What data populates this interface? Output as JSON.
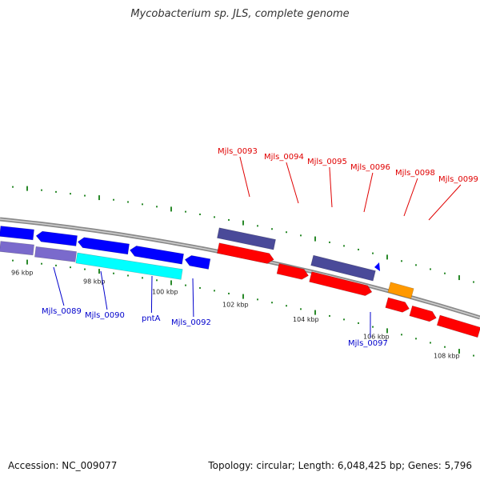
{
  "title": "Mycobacterium sp. JLS, complete genome",
  "footer": {
    "accession": "Accession: NC_009077",
    "topology": "Topology: circular; Length: 6,048,425 bp; Genes: 5,796"
  },
  "colors": {
    "backbone": "#8a8a8a",
    "tick": "#2a8a2a",
    "forward_gene": "#ff0000",
    "reverse_gene": "#0000ff",
    "purple": "#4a4a99",
    "cyan": "#00ffff",
    "orange": "#ff9900",
    "label_red": "#e00000",
    "label_blue": "#0000cc"
  },
  "scale_labels": [
    "96 kbp",
    "98 kbp",
    "100 kbp",
    "102 kbp",
    "104 kbp",
    "106 kbp",
    "108 kbp"
  ],
  "forward_labels": [
    "Mjls_0093",
    "Mjls_0094",
    "Mjls_0095",
    "Mjls_0096",
    "Mjls_0098",
    "Mjls_0099"
  ],
  "reverse_labels": [
    "Mjls_0089",
    "Mjls_0090",
    "pntA",
    "Mjls_0092",
    "Mjls_0097"
  ]
}
